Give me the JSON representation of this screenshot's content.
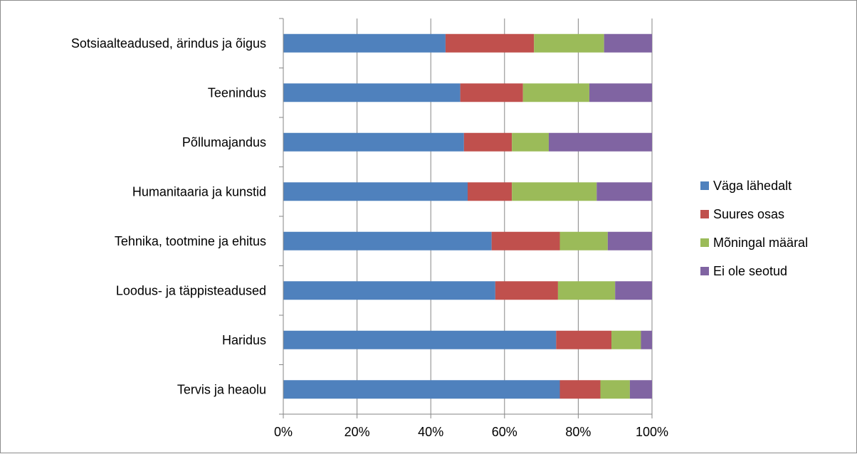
{
  "chart_data": {
    "type": "bar",
    "orientation": "horizontal",
    "stacked": "percent",
    "categories": [
      "Sotsiaalteadused, ärindus ja õigus",
      "Teenindus",
      "Põllumajandus",
      "Humanitaaria ja kunstid",
      "Tehnika, tootmine ja ehitus",
      "Loodus- ja täppisteadused",
      "Haridus",
      "Tervis ja heaolu"
    ],
    "series": [
      {
        "name": "Väga lähedalt",
        "color": "#4f81bd",
        "values": [
          44,
          48,
          49,
          50,
          56.5,
          57.5,
          74,
          75
        ]
      },
      {
        "name": "Suures osas",
        "color": "#c0504d",
        "values": [
          24,
          17,
          13,
          12,
          18.5,
          17,
          15,
          11
        ]
      },
      {
        "name": "Mõningal määral",
        "color": "#9bbb59",
        "values": [
          19,
          18,
          10,
          23,
          13,
          15.5,
          8,
          8
        ]
      },
      {
        "name": "Ei ole seotud",
        "color": "#8064a2",
        "values": [
          13,
          17,
          28,
          15,
          12,
          10,
          3,
          6
        ]
      }
    ],
    "xaxis": {
      "ticks": [
        "0%",
        "20%",
        "40%",
        "60%",
        "80%",
        "100%"
      ],
      "range": [
        0,
        100
      ]
    },
    "grid": "vertical",
    "legend": "right"
  }
}
